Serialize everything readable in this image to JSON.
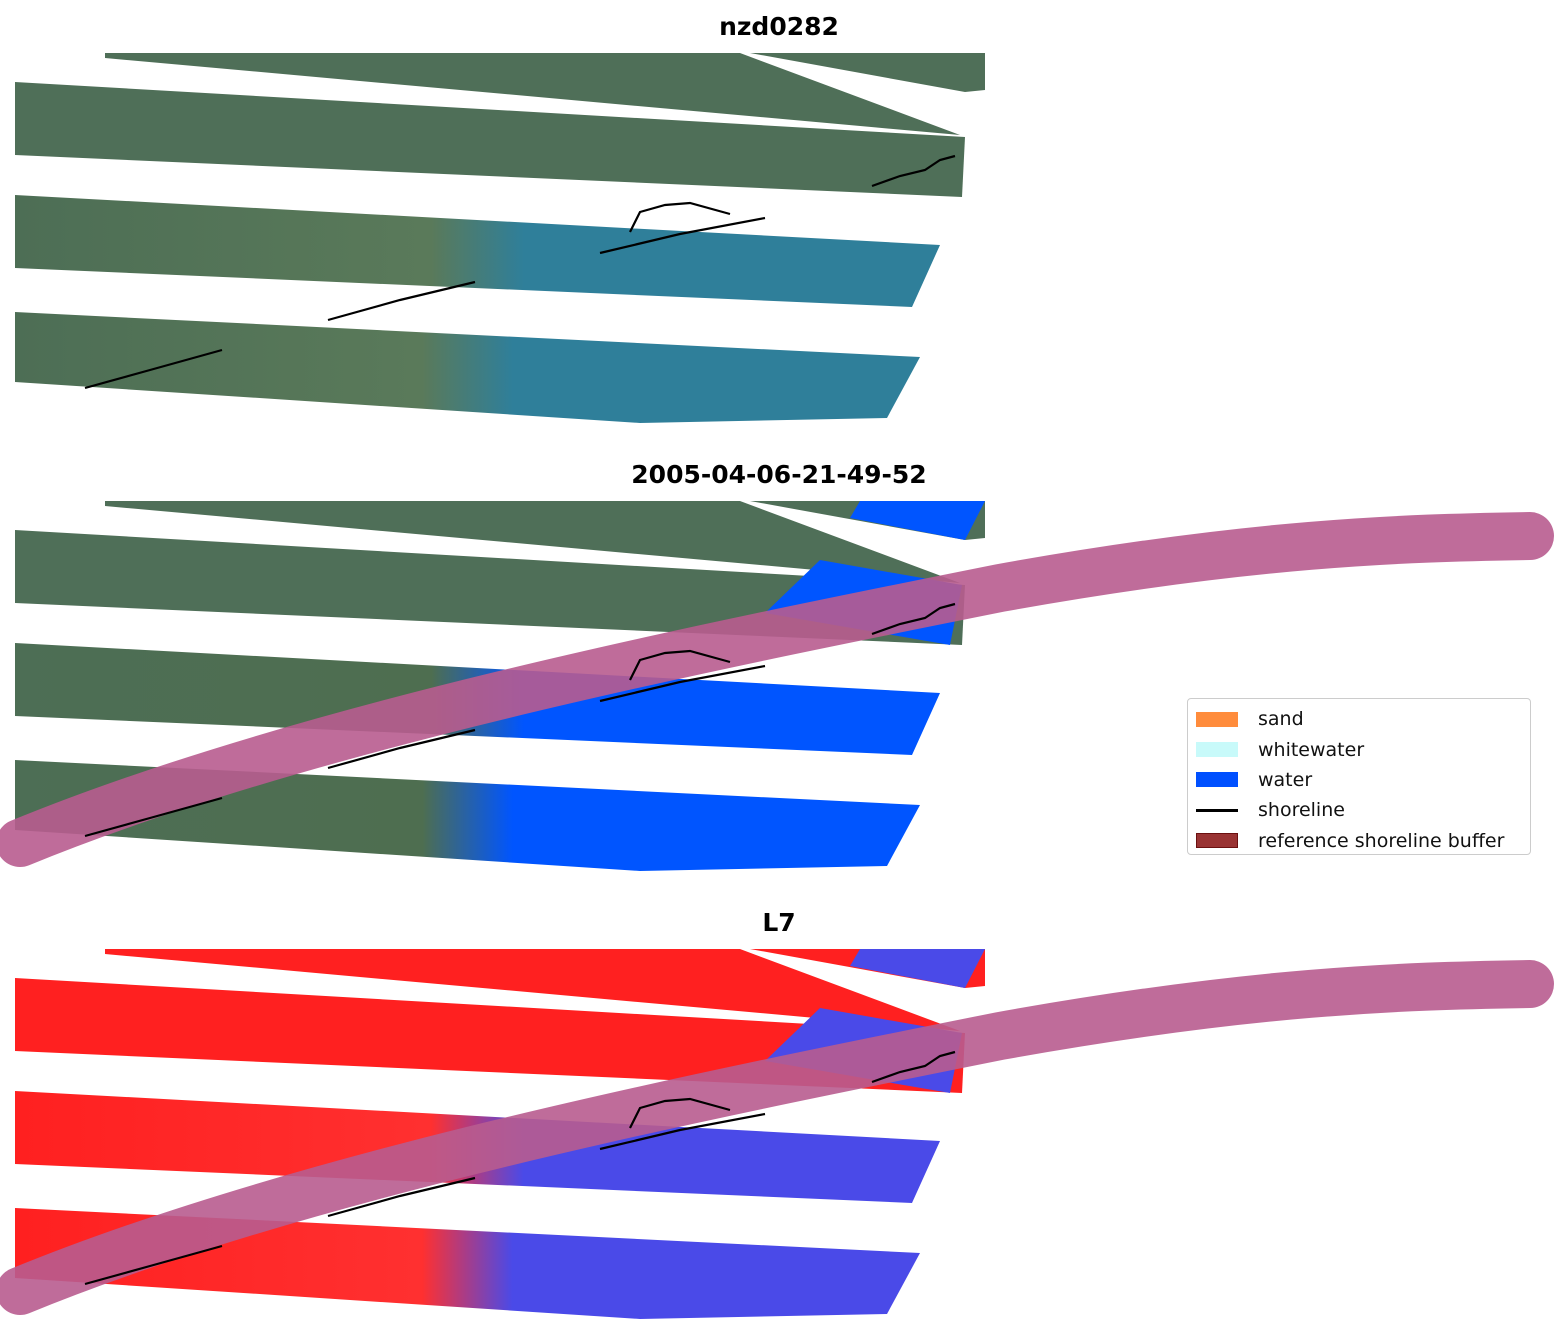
{
  "titles": [
    "nzd0282",
    "2005-04-06-21-49-52",
    "L7"
  ],
  "legend": {
    "items": [
      {
        "label": "sand",
        "color": "#ff8c3c"
      },
      {
        "label": "whitewater",
        "color": "#c8fafa"
      },
      {
        "label": "water",
        "color": "#0050ff"
      },
      {
        "label": "shoreline",
        "color": "#000000"
      },
      {
        "label": "reference shoreline buffer",
        "color": "#993333"
      }
    ]
  },
  "colors": {
    "land": "#4d6e55",
    "sea": "#2f7f9a",
    "water_mask": "#0055ff",
    "buffer": "#b85c8f",
    "index_land": "#ff2020",
    "index_water": "#4a4ae8"
  }
}
